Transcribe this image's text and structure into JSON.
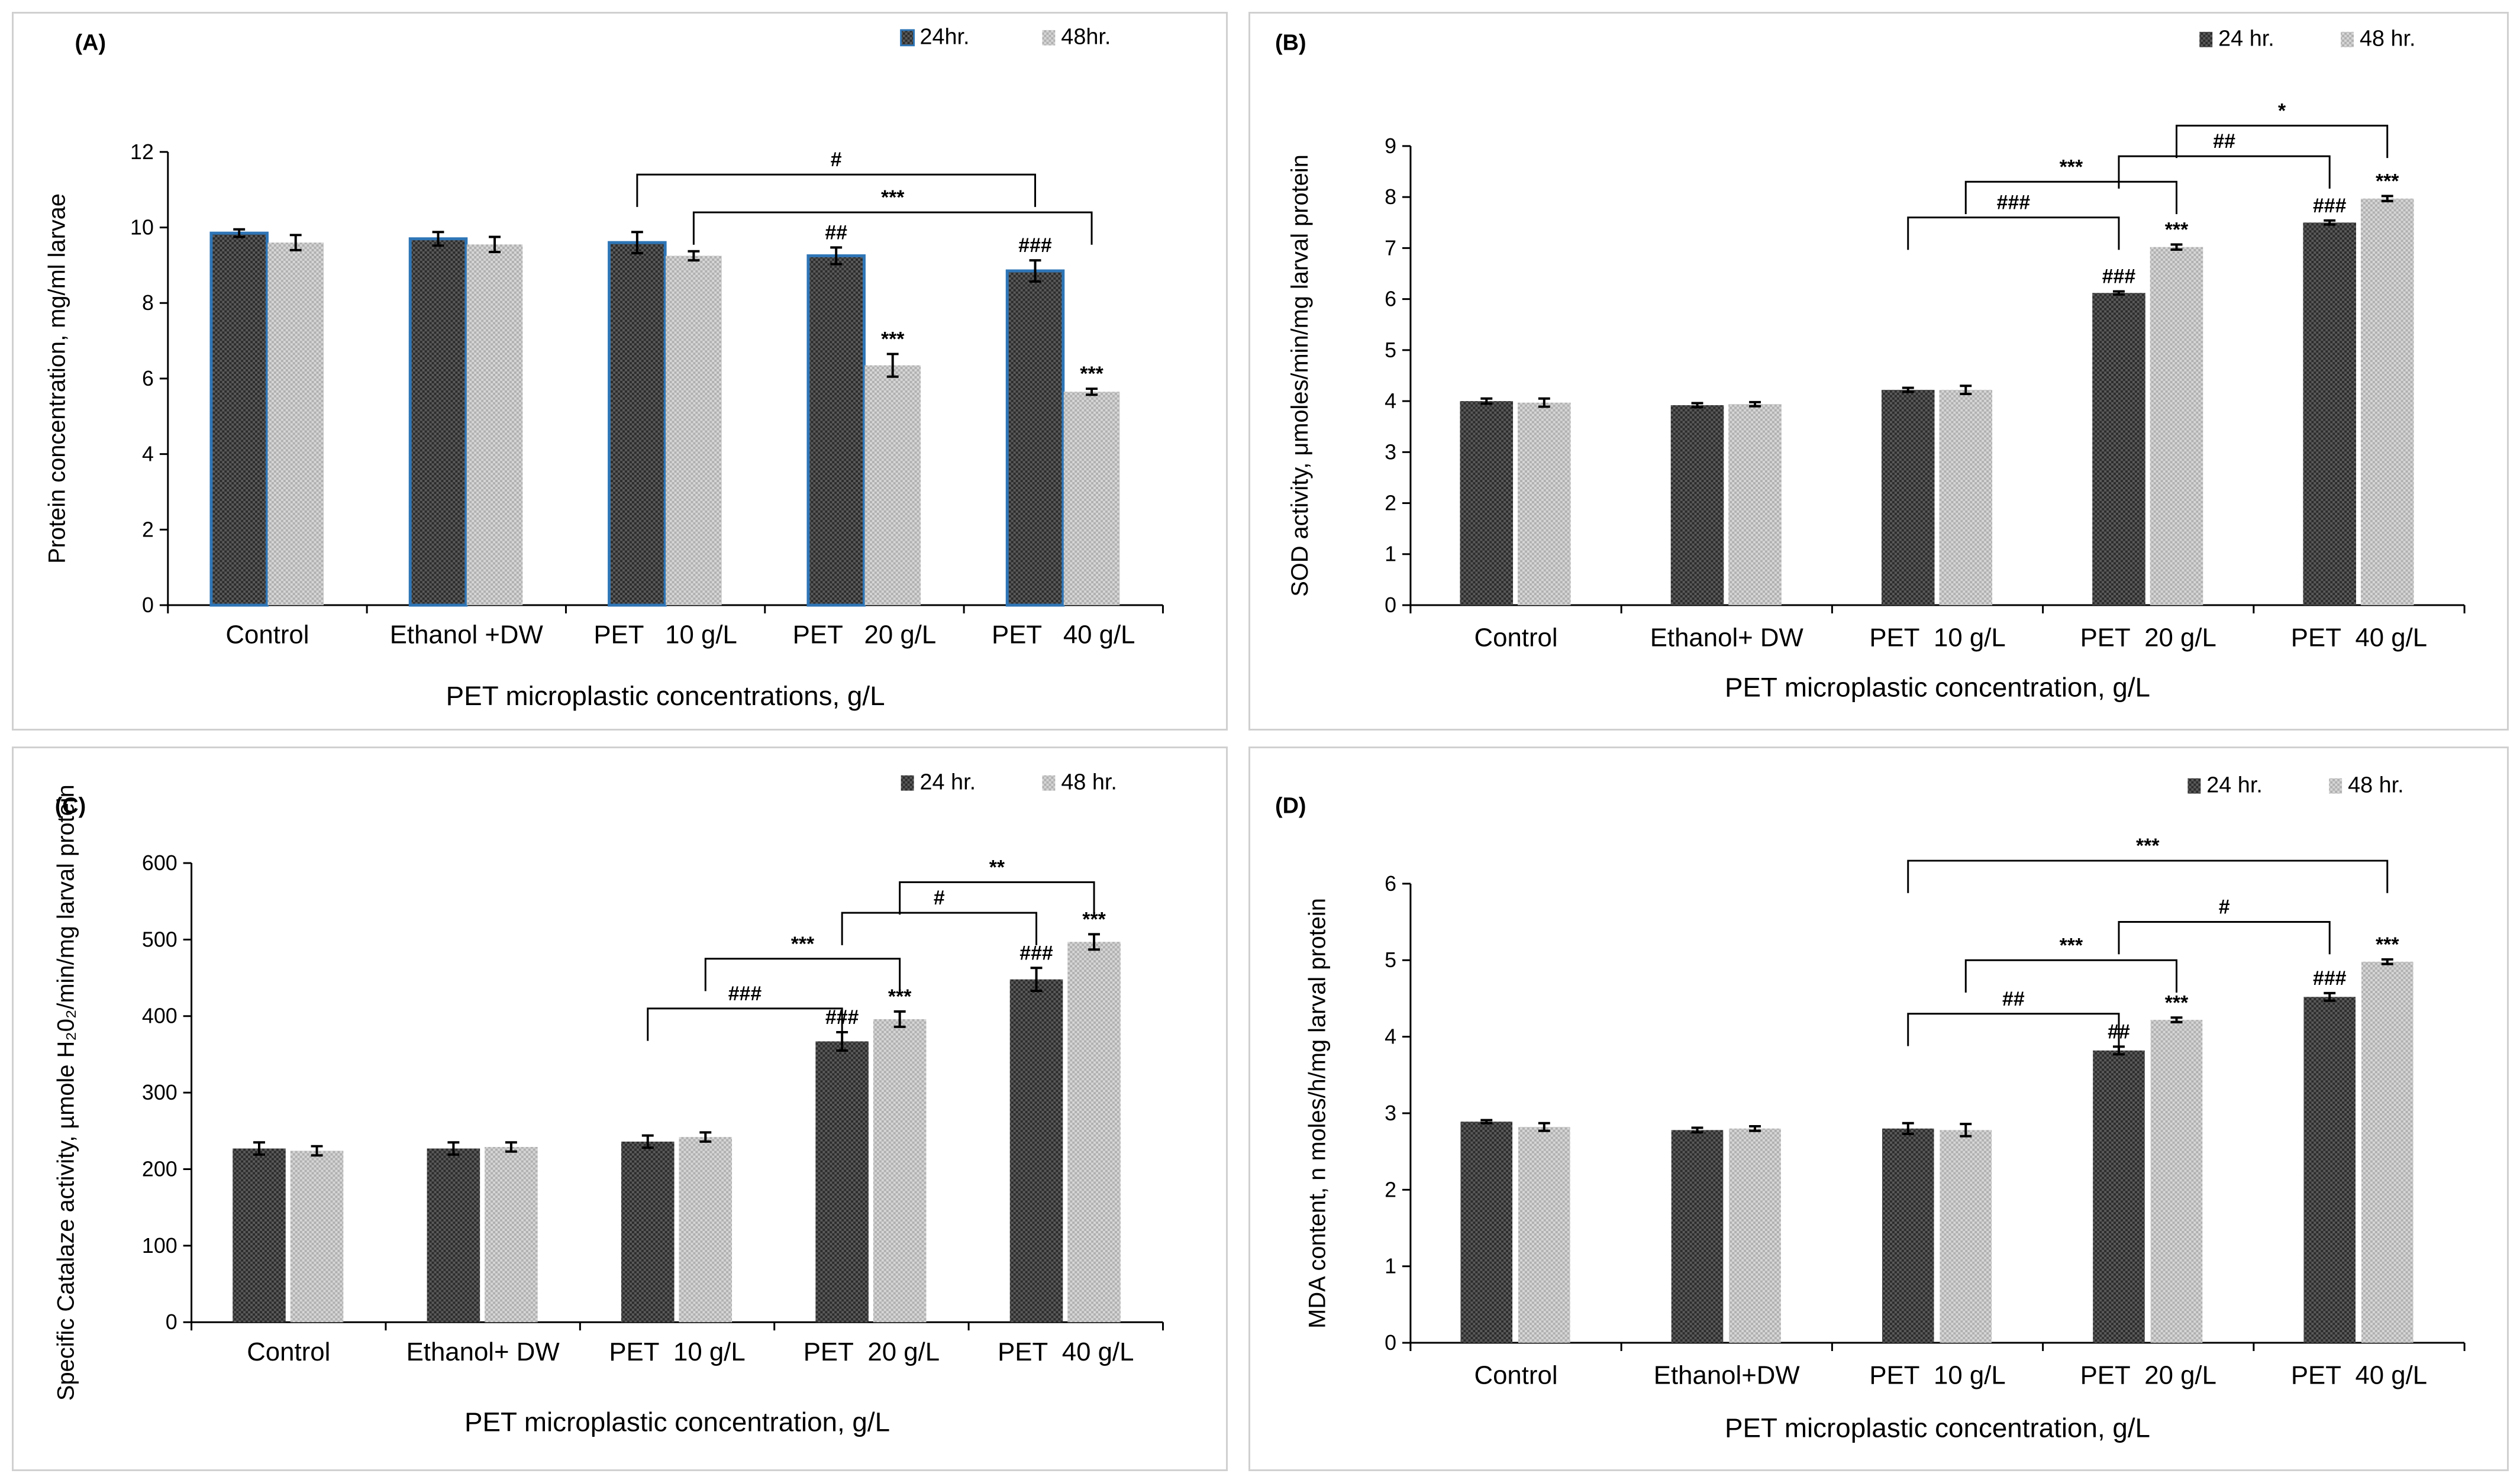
{
  "colors": {
    "bar24": "#3a3a3a",
    "bar48": "#c4c4c4",
    "outlineA": "#2e75b6",
    "axis": "#000000",
    "frame": "#d0d0d0"
  },
  "chart_data": [
    {
      "panel": "A",
      "type": "bar",
      "label": "(A)",
      "categories": [
        "Control",
        "Ethanol +DW",
        "PET   10 g/L",
        "PET   20 g/L",
        "PET   40 g/L"
      ],
      "series": [
        {
          "name": "24hr.",
          "values": [
            9.85,
            9.7,
            9.6,
            9.25,
            8.85
          ],
          "errors": [
            0.1,
            0.18,
            0.28,
            0.22,
            0.28
          ],
          "sig": [
            "",
            "",
            "",
            "##",
            "###"
          ]
        },
        {
          "name": "48hr.",
          "values": [
            9.6,
            9.55,
            9.25,
            6.35,
            5.65
          ],
          "errors": [
            0.2,
            0.2,
            0.12,
            0.3,
            0.08
          ],
          "sig": [
            "",
            "",
            "",
            "***",
            "***"
          ]
        }
      ],
      "ylabel": "Protein concentration, mg/ml  larvae",
      "xlabel": "PET microplastic concentrations, g/L",
      "ylim": [
        0,
        12
      ],
      "yticks": [
        "0",
        "2",
        "4",
        "6",
        "8",
        "10",
        "12"
      ],
      "legend_position": "top-right",
      "brackets": [
        {
          "label": "#",
          "from": [
            2,
            0
          ],
          "to": [
            4,
            0
          ],
          "level": 11.4
        },
        {
          "label": "***",
          "from": [
            2,
            1
          ],
          "to": [
            4,
            1
          ],
          "level": 10.4
        }
      ]
    },
    {
      "panel": "B",
      "type": "bar",
      "label": "(B)",
      "categories": [
        "Control",
        "Ethanol+ DW",
        "PET  10 g/L",
        "PET  20 g/L",
        "PET  40 g/L"
      ],
      "series": [
        {
          "name": "24 hr.",
          "values": [
            4.0,
            3.92,
            4.22,
            6.12,
            7.5
          ],
          "errors": [
            0.05,
            0.04,
            0.04,
            0.03,
            0.04
          ],
          "sig": [
            "",
            "",
            "",
            "###",
            "###"
          ]
        },
        {
          "name": "48 hr.",
          "values": [
            3.97,
            3.94,
            4.22,
            7.02,
            7.97
          ],
          "errors": [
            0.08,
            0.04,
            0.08,
            0.05,
            0.05
          ],
          "sig": [
            "",
            "",
            "",
            "***",
            "***"
          ]
        }
      ],
      "ylabel": "SOD activity, μmoles/min/mg  larval  protein",
      "xlabel": "PET microplastic concentration, g/L",
      "ylim": [
        0,
        9
      ],
      "yticks": [
        "0",
        "1",
        "2",
        "3",
        "4",
        "5",
        "6",
        "7",
        "8",
        "9"
      ],
      "legend_position": "top-right",
      "brackets": [
        {
          "label": "###",
          "from": [
            2,
            0
          ],
          "to": [
            3,
            0
          ],
          "level": 7.6
        },
        {
          "label": "***",
          "from": [
            2,
            1
          ],
          "to": [
            3,
            1
          ],
          "level": 8.3
        },
        {
          "label": "##",
          "from": [
            3,
            0
          ],
          "to": [
            4,
            0
          ],
          "level": 8.8
        },
        {
          "label": "*",
          "from": [
            3,
            1
          ],
          "to": [
            4,
            1
          ],
          "level": 9.4
        }
      ]
    },
    {
      "panel": "C",
      "type": "bar",
      "label": "(C)",
      "categories": [
        "Control",
        "Ethanol+ DW",
        "PET  10 g/L",
        "PET  20 g/L",
        "PET  40 g/L"
      ],
      "series": [
        {
          "name": "24 hr.",
          "values": [
            227,
            227,
            236,
            367,
            448
          ],
          "errors": [
            8,
            8,
            8,
            12,
            15
          ],
          "sig": [
            "",
            "",
            "",
            "###",
            "###"
          ]
        },
        {
          "name": "48 hr.",
          "values": [
            224,
            229,
            242,
            396,
            497
          ],
          "errors": [
            6,
            6,
            6,
            10,
            10
          ],
          "sig": [
            "",
            "",
            "",
            "***",
            "***"
          ]
        }
      ],
      "ylabel": "Specific Catalaze activity, µmole H₂0₂/min/mg  larval protein",
      "xlabel": "PET microplastic concentration, g/L",
      "ylim": [
        0,
        600
      ],
      "yticks": [
        "0",
        "100",
        "200",
        "300",
        "400",
        "500",
        "600"
      ],
      "legend_position": "top-right",
      "brackets": [
        {
          "label": "###",
          "from": [
            2,
            0
          ],
          "to": [
            3,
            0
          ],
          "level": 410
        },
        {
          "label": "***",
          "from": [
            2,
            1
          ],
          "to": [
            3,
            1
          ],
          "level": 475
        },
        {
          "label": "#",
          "from": [
            3,
            0
          ],
          "to": [
            4,
            0
          ],
          "level": 535
        },
        {
          "label": "**",
          "from": [
            3,
            1
          ],
          "to": [
            4,
            1
          ],
          "level": 575
        }
      ]
    },
    {
      "panel": "D",
      "type": "bar",
      "label": "(D)",
      "categories": [
        "Control",
        "Ethanol+DW",
        "PET  10 g/L",
        "PET  20 g/L",
        "PET  40 g/L"
      ],
      "series": [
        {
          "name": "24 hr.",
          "values": [
            2.89,
            2.78,
            2.8,
            3.82,
            4.52
          ],
          "errors": [
            0.02,
            0.03,
            0.07,
            0.05,
            0.05
          ],
          "sig": [
            "",
            "",
            "",
            "##",
            "###"
          ]
        },
        {
          "name": "48 hr.",
          "values": [
            2.82,
            2.8,
            2.78,
            4.22,
            4.98
          ],
          "errors": [
            0.05,
            0.03,
            0.08,
            0.03,
            0.03
          ],
          "sig": [
            "",
            "",
            "",
            "***",
            "***"
          ]
        }
      ],
      "ylabel": "MDA content, n moles/h/mg  larval protein",
      "xlabel": "PET microplastic concentration, g/L",
      "ylim": [
        0,
        6
      ],
      "yticks": [
        "0",
        "1",
        "2",
        "3",
        "4",
        "5",
        "6"
      ],
      "legend_position": "top-right",
      "brackets": [
        {
          "label": "##",
          "from": [
            2,
            0
          ],
          "to": [
            3,
            0
          ],
          "level": 4.3
        },
        {
          "label": "***",
          "from": [
            2,
            1
          ],
          "to": [
            3,
            1
          ],
          "level": 5.0
        },
        {
          "label": "#",
          "from": [
            3,
            0
          ],
          "to": [
            4,
            0
          ],
          "level": 5.5
        },
        {
          "label": "***",
          "from": [
            2,
            0
          ],
          "to": [
            4,
            1
          ],
          "level": 6.3
        }
      ]
    }
  ]
}
